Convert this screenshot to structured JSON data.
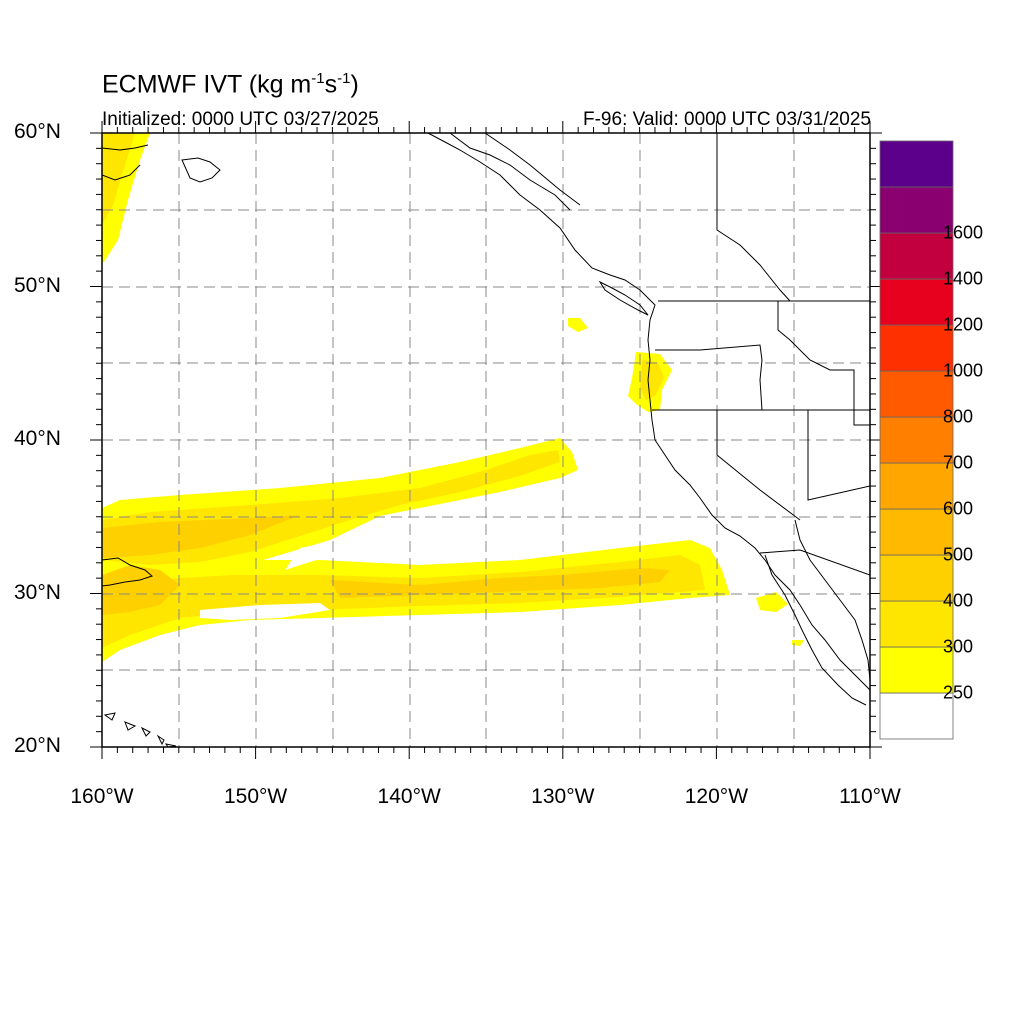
{
  "title": {
    "text": "ECMWF IVT (kg m",
    "sup1": "-1",
    "mid": "s",
    "sup2": "-1",
    "end": ")"
  },
  "init_label": "Initialized: 0000 UTC 03/27/2025",
  "valid_label": "F-96: Valid: 0000 UTC 03/31/2025",
  "map": {
    "lon_range": [
      -160,
      -110
    ],
    "lat_range": [
      20,
      60
    ],
    "grid": true,
    "grid_style": "dashed",
    "lat_ticks": [
      {
        "value": 60,
        "label": "60°N"
      },
      {
        "value": 50,
        "label": "50°N"
      },
      {
        "value": 40,
        "label": "40°N"
      },
      {
        "value": 30,
        "label": "30°N"
      },
      {
        "value": 20,
        "label": "20°N"
      }
    ],
    "lon_ticks": [
      {
        "value": -160,
        "label": "160°W"
      },
      {
        "value": -150,
        "label": "150°W"
      },
      {
        "value": -140,
        "label": "140°W"
      },
      {
        "value": -130,
        "label": "130°W"
      },
      {
        "value": -120,
        "label": "120°W"
      },
      {
        "value": -110,
        "label": "110°W"
      }
    ]
  },
  "colorbar": {
    "levels": [
      {
        "label": "250",
        "color": "#ffff00"
      },
      {
        "label": "300",
        "color": "#ffe600"
      },
      {
        "label": "400",
        "color": "#ffd000"
      },
      {
        "label": "500",
        "color": "#ffba00"
      },
      {
        "label": "600",
        "color": "#ffa600"
      },
      {
        "label": "700",
        "color": "#ff7f00"
      },
      {
        "label": "800",
        "color": "#ff5a00"
      },
      {
        "label": "1000",
        "color": "#ff3000"
      },
      {
        "label": "1200",
        "color": "#e8001f"
      },
      {
        "label": "1400",
        "color": "#c20040"
      },
      {
        "label": "1600",
        "color": "#8a0070"
      }
    ],
    "top_color": "#5c008c",
    "bottom_color": "#ffffff"
  },
  "colors": {
    "ivt_250": "#ffff00",
    "ivt_300": "#ffe600",
    "ivt_400": "#ffd000",
    "ivt_500": "#ffba00"
  }
}
